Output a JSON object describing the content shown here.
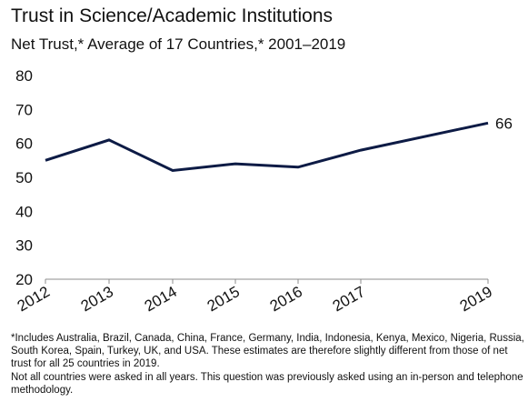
{
  "title": "Trust in Science/Academic Institutions",
  "subtitle": "Net Trust,* Average of 17 Countries,* 2001–2019",
  "chart_data": {
    "type": "line",
    "x": [
      "2012",
      "2013",
      "2014",
      "2015",
      "2016",
      "2017",
      "2019"
    ],
    "series": [
      {
        "values": [
          55,
          61,
          52,
          54,
          53,
          58,
          66
        ]
      }
    ],
    "end_label": "66",
    "ylim": [
      20,
      80
    ],
    "yticks": [
      20,
      30,
      40,
      50,
      60,
      70,
      80
    ],
    "xlabel": "",
    "ylabel": "",
    "grid": false,
    "line_color": "#0d1b45"
  },
  "footnotes": [
    "*Includes Australia, Brazil, Canada, China, France, Germany, India, Indonesia, Kenya, Mexico, Nigeria, Russia, South Korea, Spain, Turkey, UK, and USA. These estimates are therefore slightly different from those of net trust for all 25 countries in 2019.",
    "Not all countries were asked in all years. This question was previously asked using an in-person and telephone methodology."
  ]
}
